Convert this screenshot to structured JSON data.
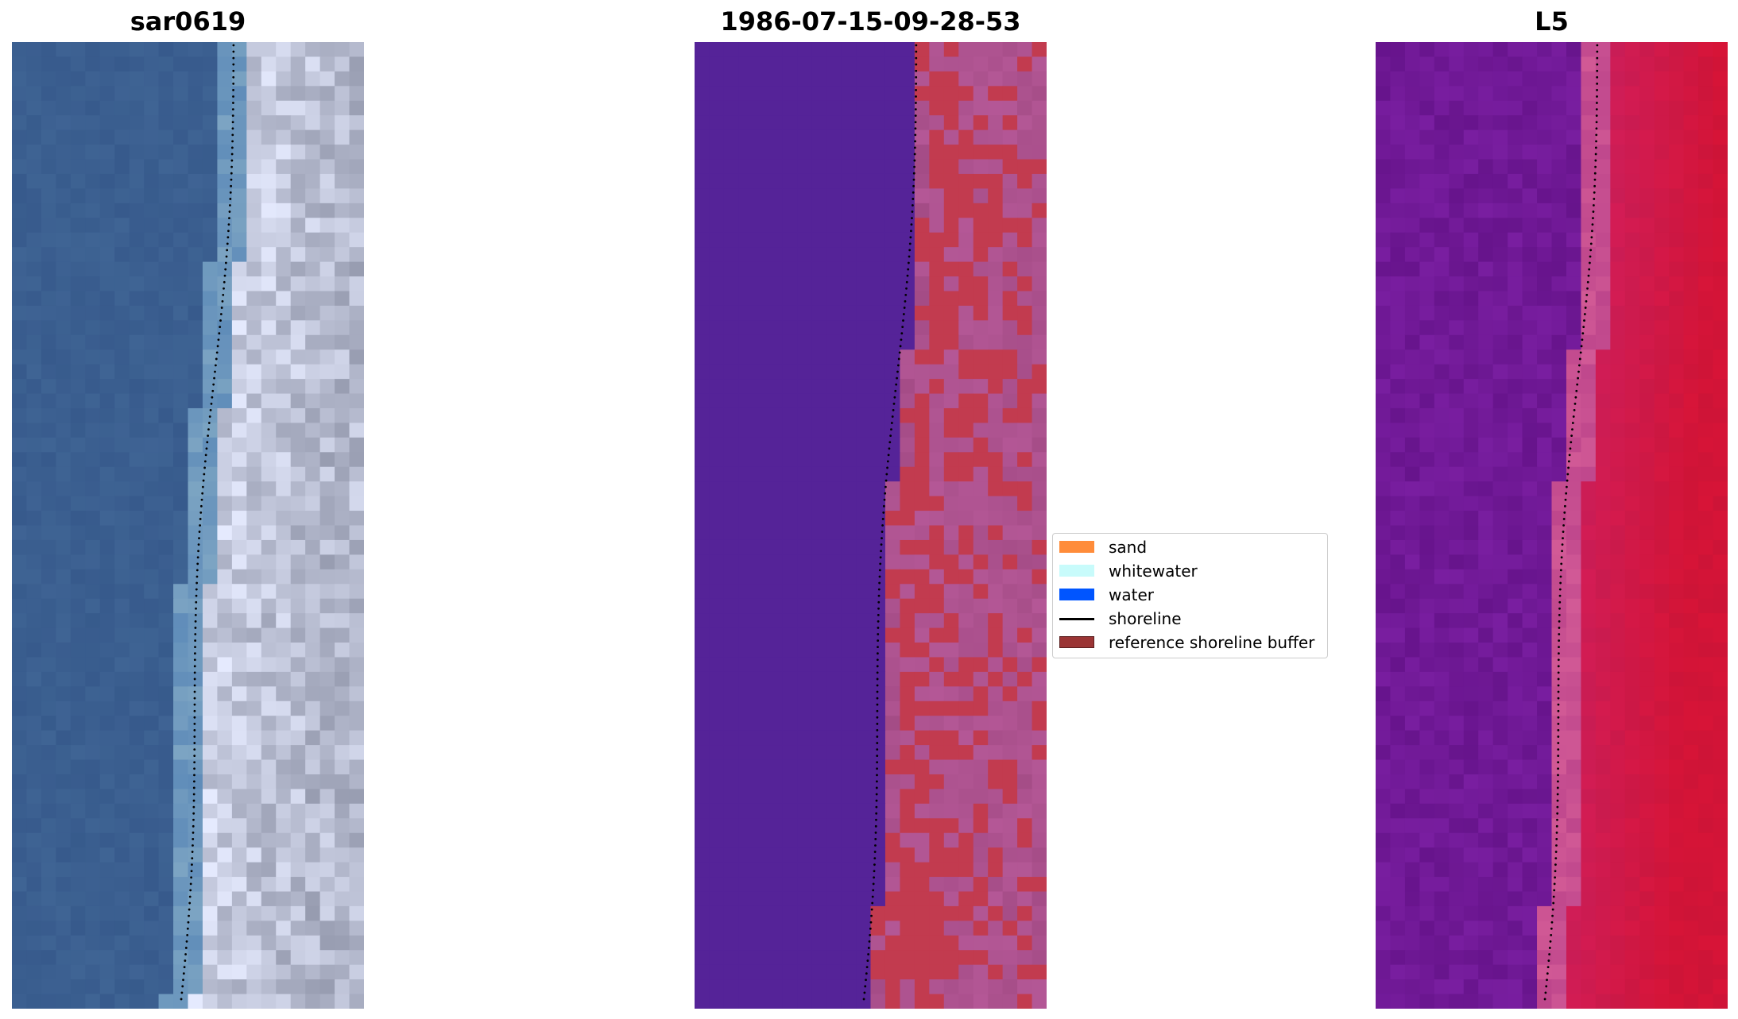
{
  "figure": {
    "panels": [
      {
        "title": "sar0619",
        "image": "rgb-satellite"
      },
      {
        "title": "1986-07-15-09-28-53",
        "image": "classification-overlay"
      },
      {
        "title": "L5",
        "image": "index-colormap"
      }
    ],
    "legend": {
      "items": [
        {
          "label": "sand",
          "color": "#ff8c3a",
          "kind": "patch"
        },
        {
          "label": "whitewater",
          "color": "#c8fbfb",
          "kind": "patch"
        },
        {
          "label": "water",
          "color": "#0055ff",
          "kind": "patch"
        },
        {
          "label": "shoreline",
          "color": "#000000",
          "kind": "line"
        },
        {
          "label": "reference shoreline buffer",
          "color": "#9b3535",
          "kind": "patch"
        }
      ]
    }
  }
}
